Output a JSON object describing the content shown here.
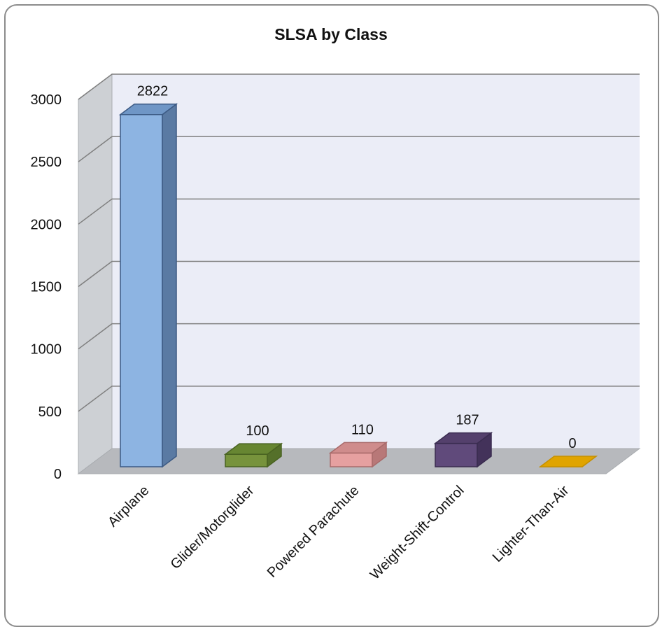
{
  "chart_data": {
    "type": "bar",
    "title": "SLSA by Class",
    "categories": [
      "Airplane",
      "Glider/Motorglider",
      "Powered Parachute",
      "Weight-Shift-Control",
      "Lighter-Than-Air"
    ],
    "values": [
      2822,
      100,
      110,
      187,
      0
    ],
    "data_labels": [
      "2822",
      "100",
      "110",
      "187",
      "0"
    ],
    "y_ticks": [
      "0",
      "500",
      "1000",
      "1500",
      "2000",
      "2500",
      "3000"
    ],
    "ylim": [
      0,
      3000
    ],
    "grid": true,
    "legend": "none",
    "style": "3d-column",
    "colors": [
      {
        "front": "#8db4e2",
        "side": "#5a7aa3",
        "top": "#6f96c6",
        "stroke": "#3c5a84"
      },
      {
        "front": "#77933c",
        "side": "#55702a",
        "top": "#678632",
        "stroke": "#4a6322"
      },
      {
        "front": "#e6a0a0",
        "side": "#b87878",
        "top": "#cf8c8c",
        "stroke": "#a86a6a"
      },
      {
        "front": "#604a7b",
        "side": "#43325a",
        "top": "#54406c",
        "stroke": "#3a2c50"
      },
      {
        "front": "#f0b000",
        "side": "#c88f00",
        "top": "#e0a400",
        "stroke": "#c69000"
      }
    ],
    "wall_colors": {
      "back": "#ebedf7",
      "side": "#cdd0d4",
      "floor": "#b7b9bd",
      "gridline": "#7f7f7f"
    }
  }
}
